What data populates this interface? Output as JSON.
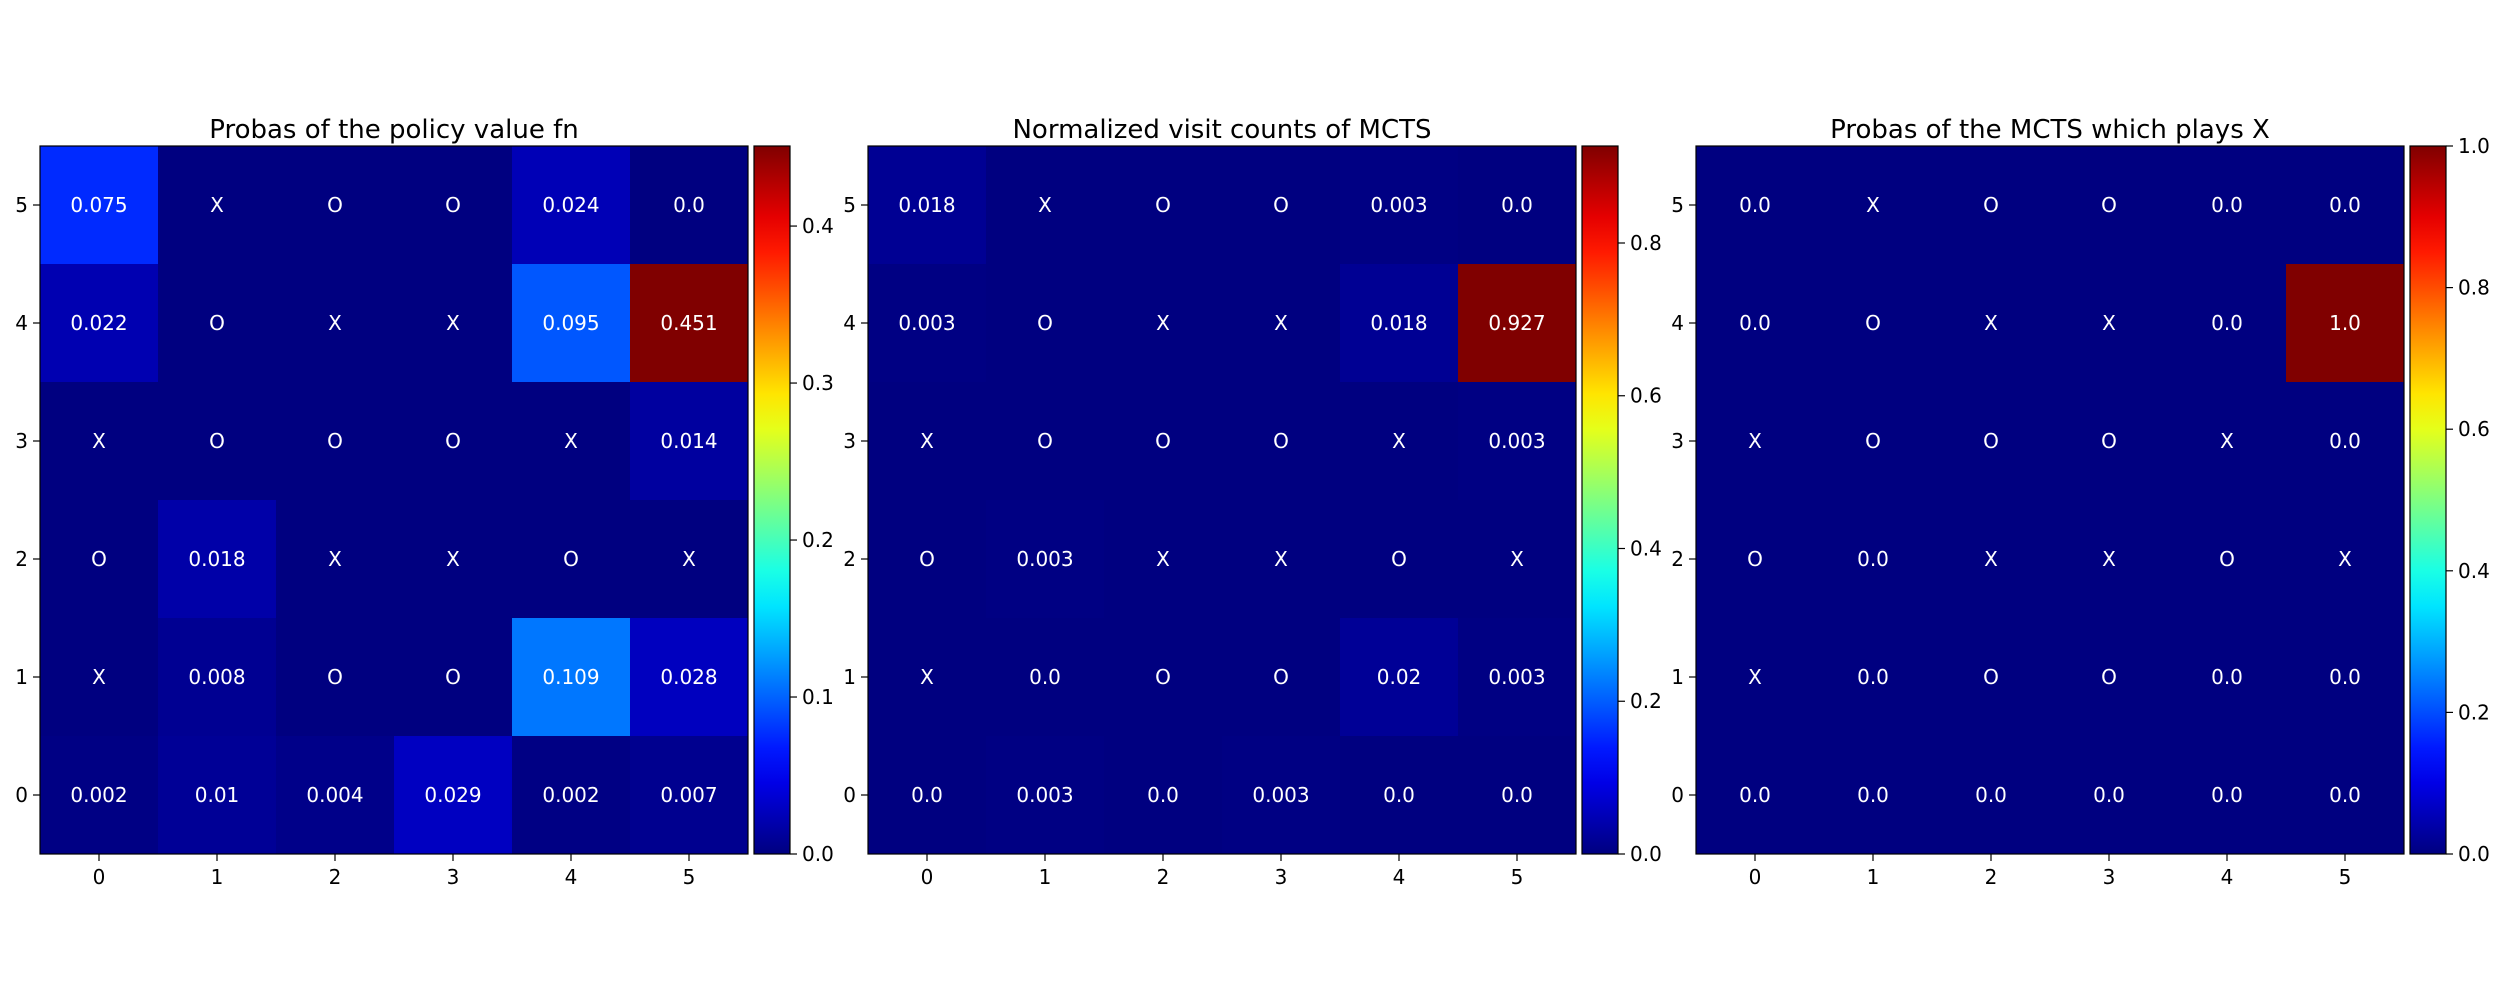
{
  "chart_data": [
    {
      "type": "heatmap",
      "title": "Probas of the policy value fn",
      "x_ticks": [
        "0",
        "1",
        "2",
        "3",
        "4",
        "5"
      ],
      "y_ticks": [
        "0",
        "1",
        "2",
        "3",
        "4",
        "5"
      ],
      "colormap": "jet",
      "vmin": 0,
      "vmax": 0.451,
      "colorbar_ticks": [
        "0.0",
        "0.1",
        "0.2",
        "0.3",
        "0.4"
      ],
      "colorbar_tick_values": [
        0,
        0.1,
        0.2,
        0.3,
        0.4
      ],
      "rows_top_to_bottom": [
        {
          "y": "5",
          "labels": [
            "0.075",
            "X",
            "O",
            "O",
            "0.024",
            "0.0"
          ],
          "values": [
            0.075,
            0,
            0,
            0,
            0.024,
            0
          ]
        },
        {
          "y": "4",
          "labels": [
            "0.022",
            "O",
            "X",
            "X",
            "0.095",
            "0.451"
          ],
          "values": [
            0.022,
            0,
            0,
            0,
            0.095,
            0.451
          ]
        },
        {
          "y": "3",
          "labels": [
            "X",
            "O",
            "O",
            "O",
            "X",
            "0.014"
          ],
          "values": [
            0,
            0,
            0,
            0,
            0,
            0.014
          ]
        },
        {
          "y": "2",
          "labels": [
            "O",
            "0.018",
            "X",
            "X",
            "O",
            "X"
          ],
          "values": [
            0,
            0.018,
            0,
            0,
            0,
            0
          ]
        },
        {
          "y": "1",
          "labels": [
            "X",
            "0.008",
            "O",
            "O",
            "0.109",
            "0.028"
          ],
          "values": [
            0,
            0.008,
            0,
            0,
            0.109,
            0.028
          ]
        },
        {
          "y": "0",
          "labels": [
            "0.002",
            "0.01",
            "0.004",
            "0.029",
            "0.002",
            "0.007"
          ],
          "values": [
            0.002,
            0.01,
            0.004,
            0.029,
            0.002,
            0.007
          ]
        }
      ]
    },
    {
      "type": "heatmap",
      "title": "Normalized visit counts of MCTS",
      "x_ticks": [
        "0",
        "1",
        "2",
        "3",
        "4",
        "5"
      ],
      "y_ticks": [
        "0",
        "1",
        "2",
        "3",
        "4",
        "5"
      ],
      "colormap": "jet",
      "vmin": 0,
      "vmax": 0.927,
      "colorbar_ticks": [
        "0.0",
        "0.2",
        "0.4",
        "0.6",
        "0.8"
      ],
      "colorbar_tick_values": [
        0,
        0.2,
        0.4,
        0.6,
        0.8
      ],
      "rows_top_to_bottom": [
        {
          "y": "5",
          "labels": [
            "0.018",
            "X",
            "O",
            "O",
            "0.003",
            "0.0"
          ],
          "values": [
            0.018,
            0,
            0,
            0,
            0.003,
            0
          ]
        },
        {
          "y": "4",
          "labels": [
            "0.003",
            "O",
            "X",
            "X",
            "0.018",
            "0.927"
          ],
          "values": [
            0.003,
            0,
            0,
            0,
            0.018,
            0.927
          ]
        },
        {
          "y": "3",
          "labels": [
            "X",
            "O",
            "O",
            "O",
            "X",
            "0.003"
          ],
          "values": [
            0,
            0,
            0,
            0,
            0,
            0.003
          ]
        },
        {
          "y": "2",
          "labels": [
            "O",
            "0.003",
            "X",
            "X",
            "O",
            "X"
          ],
          "values": [
            0,
            0.003,
            0,
            0,
            0,
            0
          ]
        },
        {
          "y": "1",
          "labels": [
            "X",
            "0.0",
            "O",
            "O",
            "0.02",
            "0.003"
          ],
          "values": [
            0,
            0,
            0,
            0,
            0.02,
            0.003
          ]
        },
        {
          "y": "0",
          "labels": [
            "0.0",
            "0.003",
            "0.0",
            "0.003",
            "0.0",
            "0.0"
          ],
          "values": [
            0,
            0.003,
            0,
            0.003,
            0,
            0
          ]
        }
      ]
    },
    {
      "type": "heatmap",
      "title": "Probas of the MCTS which plays X",
      "x_ticks": [
        "0",
        "1",
        "2",
        "3",
        "4",
        "5"
      ],
      "y_ticks": [
        "0",
        "1",
        "2",
        "3",
        "4",
        "5"
      ],
      "colormap": "jet",
      "vmin": 0,
      "vmax": 1.0,
      "colorbar_ticks": [
        "0.0",
        "0.2",
        "0.4",
        "0.6",
        "0.8",
        "1.0"
      ],
      "colorbar_tick_values": [
        0,
        0.2,
        0.4,
        0.6,
        0.8,
        1.0
      ],
      "rows_top_to_bottom": [
        {
          "y": "5",
          "labels": [
            "0.0",
            "X",
            "O",
            "O",
            "0.0",
            "0.0"
          ],
          "values": [
            0,
            0,
            0,
            0,
            0,
            0
          ]
        },
        {
          "y": "4",
          "labels": [
            "0.0",
            "O",
            "X",
            "X",
            "0.0",
            "1.0"
          ],
          "values": [
            0,
            0,
            0,
            0,
            0,
            1.0
          ]
        },
        {
          "y": "3",
          "labels": [
            "X",
            "O",
            "O",
            "O",
            "X",
            "0.0"
          ],
          "values": [
            0,
            0,
            0,
            0,
            0,
            0
          ]
        },
        {
          "y": "2",
          "labels": [
            "O",
            "0.0",
            "X",
            "X",
            "O",
            "X"
          ],
          "values": [
            0,
            0,
            0,
            0,
            0,
            0
          ]
        },
        {
          "y": "1",
          "labels": [
            "X",
            "0.0",
            "O",
            "O",
            "0.0",
            "0.0"
          ],
          "values": [
            0,
            0,
            0,
            0,
            0,
            0
          ]
        },
        {
          "y": "0",
          "labels": [
            "0.0",
            "0.0",
            "0.0",
            "0.0",
            "0.0",
            "0.0"
          ],
          "values": [
            0,
            0,
            0,
            0,
            0,
            0
          ]
        }
      ]
    }
  ]
}
